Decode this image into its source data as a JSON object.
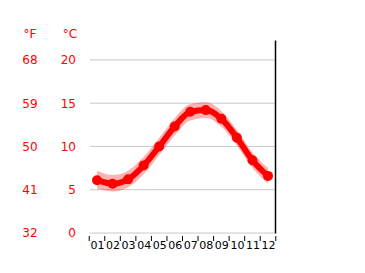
{
  "chart_data": {
    "type": "line",
    "categories": [
      "01",
      "02",
      "03",
      "04",
      "05",
      "06",
      "07",
      "08",
      "09",
      "10",
      "11",
      "12"
    ],
    "values": [
      6.1,
      5.7,
      6.2,
      7.8,
      10.0,
      12.3,
      14.0,
      14.2,
      13.2,
      11.0,
      8.4,
      6.6
    ],
    "lower": [
      5.1,
      4.8,
      5.3,
      6.8,
      9.0,
      11.3,
      13.0,
      13.3,
      12.3,
      10.1,
      7.5,
      5.7
    ],
    "upper": [
      7.2,
      6.7,
      7.2,
      8.8,
      11.0,
      13.3,
      14.9,
      15.1,
      14.1,
      11.9,
      9.3,
      7.5
    ],
    "color": "#ff0000",
    "marker": "circle",
    "y_label": "°C",
    "y2_label": "°F",
    "ylim": [
      0,
      22.3
    ],
    "yticks": [
      0,
      5,
      10,
      15,
      20
    ],
    "y2lim": [
      32,
      72.14
    ],
    "y2ticks": [
      32,
      41,
      50,
      59,
      68
    ],
    "grid": true
  }
}
